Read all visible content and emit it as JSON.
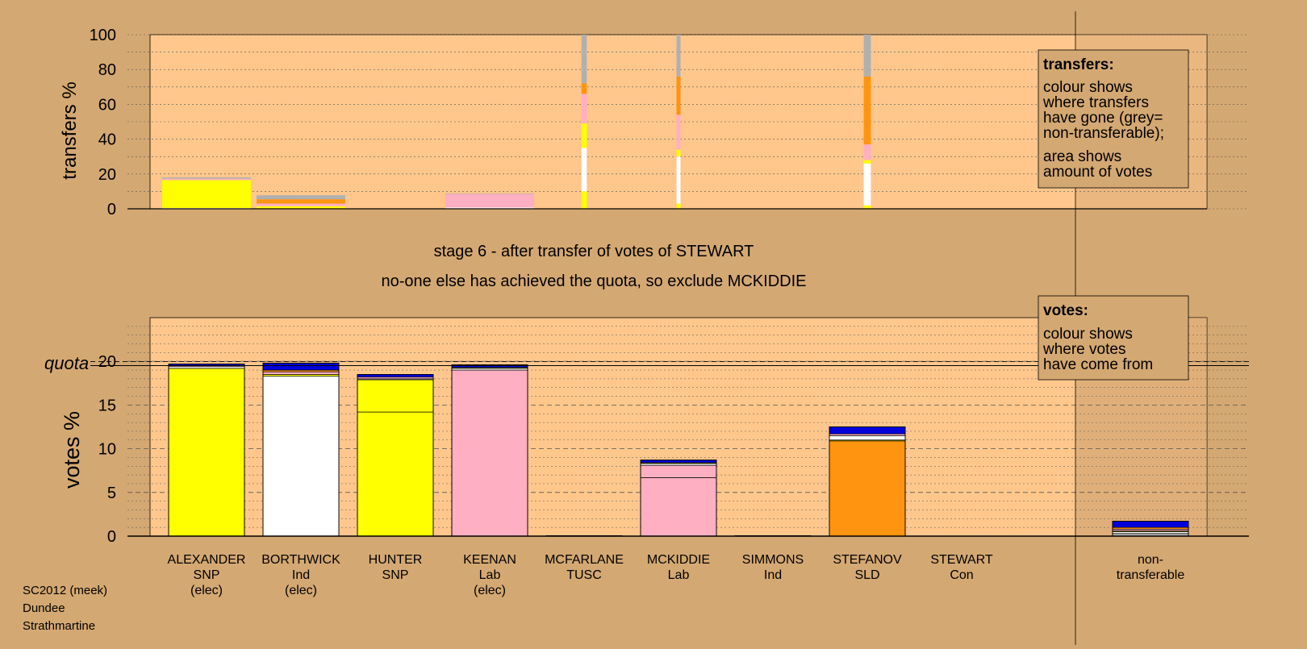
{
  "colors": {
    "page_bg": "#d4a872",
    "plot_bg": "#ffc78c",
    "shaded_bg": "#c79a6a",
    "SNP": "#ffff00",
    "Ind": "#ffffff",
    "Lab": "#ffafc2",
    "SLD": "#ff9410",
    "Con": "#0000dd",
    "TUSC": "#cc0000",
    "non_transferable": "#b0b0b0",
    "outline": "#000000"
  },
  "stage_title": "stage 6 - after transfer of votes of STEWART",
  "stage_note": "no-one else has achieved the quota, so exclude MCKIDDIE",
  "footer": [
    "SC2012 (meek)",
    "Dundee",
    "Strathmartine"
  ],
  "legend_transfers": {
    "title": "transfers:",
    "lines": [
      "colour shows",
      "where transfers",
      "have gone (grey=",
      "non-transferable);",
      "area shows",
      "amount of votes"
    ]
  },
  "legend_votes": {
    "title": "votes:",
    "lines": [
      "colour shows",
      "where votes",
      "have come from"
    ]
  },
  "chart_data": [
    {
      "type": "bar",
      "title": "",
      "ylabel": "transfers %",
      "ylim": [
        0,
        100
      ],
      "yticks": [
        0,
        20,
        40,
        60,
        80,
        100
      ],
      "categories": [
        "ALEXANDER",
        "BORTHWICK",
        "HUNTER",
        "KEENAN",
        "MCFARLANE",
        "MCKIDDIE",
        "SIMMONS",
        "STEFANOV",
        "STEWART"
      ],
      "bar_width_fraction": [
        1.0,
        1.0,
        0,
        1.0,
        0.06,
        0.04,
        0,
        0.08,
        0
      ],
      "stacks": [
        [
          {
            "party": "Ind",
            "value": 0.5
          },
          {
            "party": "SNP",
            "value": 16
          },
          {
            "party": "Lab",
            "value": 0.8
          },
          {
            "party": "non_transferable",
            "value": 0.7
          }
        ],
        [
          {
            "party": "SNP",
            "value": 1.5
          },
          {
            "party": "Lab",
            "value": 1.5
          },
          {
            "party": "SLD",
            "value": 2.5
          },
          {
            "party": "non_transferable",
            "value": 2.3
          }
        ],
        [],
        [
          {
            "party": "Ind",
            "value": 0.8
          },
          {
            "party": "Lab",
            "value": 7.7
          },
          {
            "party": "non_transferable",
            "value": 0.3
          }
        ],
        [
          {
            "party": "SNP",
            "value": 10
          },
          {
            "party": "Ind",
            "value": 25
          },
          {
            "party": "SNP",
            "value": 14
          },
          {
            "party": "Lab",
            "value": 17
          },
          {
            "party": "SLD",
            "value": 6
          },
          {
            "party": "non_transferable",
            "value": 28
          }
        ],
        [
          {
            "party": "SNP",
            "value": 3
          },
          {
            "party": "Ind",
            "value": 27
          },
          {
            "party": "SNP",
            "value": 4
          },
          {
            "party": "Lab",
            "value": 20
          },
          {
            "party": "SLD",
            "value": 22
          },
          {
            "party": "non_transferable",
            "value": 24
          }
        ],
        [],
        [
          {
            "party": "SNP",
            "value": 2
          },
          {
            "party": "Ind",
            "value": 24
          },
          {
            "party": "SNP",
            "value": 2
          },
          {
            "party": "Lab",
            "value": 9
          },
          {
            "party": "SLD",
            "value": 39
          },
          {
            "party": "non_transferable",
            "value": 24
          }
        ],
        []
      ]
    },
    {
      "type": "bar",
      "title": "",
      "ylabel": "votes %",
      "ylim": [
        0,
        25
      ],
      "yticks": [
        0,
        5,
        10,
        15,
        20
      ],
      "quota": 19.7,
      "quota_label": "quota",
      "categories": [
        "ALEXANDER",
        "BORTHWICK",
        "HUNTER",
        "KEENAN",
        "MCFARLANE",
        "MCKIDDIE",
        "SIMMONS",
        "STEFANOV",
        "STEWART",
        "non-"
      ],
      "category_lines2": [
        "SNP",
        "Ind",
        "SNP",
        "Lab",
        "TUSC",
        "Lab",
        "Ind",
        "SLD",
        "Con",
        "transferable"
      ],
      "category_lines3": [
        "(elec)",
        "(elec)",
        "",
        "(elec)",
        "",
        "",
        "",
        "",
        "",
        ""
      ],
      "stacks": [
        [
          {
            "party": "SNP",
            "value": 19.2
          },
          {
            "party": "Ind",
            "value": 0.2
          },
          {
            "party": "Lab",
            "value": 0.1
          },
          {
            "party": "Con",
            "value": 0.2
          }
        ],
        [
          {
            "party": "Ind",
            "value": 18.3
          },
          {
            "party": "SNP",
            "value": 0.2
          },
          {
            "party": "Lab",
            "value": 0.3
          },
          {
            "party": "SLD",
            "value": 0.2
          },
          {
            "party": "Con",
            "value": 0.8
          }
        ],
        [
          {
            "party": "SNP",
            "value": 14.2
          },
          {
            "party": "SNP",
            "value": 3.7
          },
          {
            "party": "Ind",
            "value": 0.1
          },
          {
            "party": "Lab",
            "value": 0.2
          },
          {
            "party": "Con",
            "value": 0.3
          }
        ],
        [
          {
            "party": "Lab",
            "value": 19.0
          },
          {
            "party": "Ind",
            "value": 0.2
          },
          {
            "party": "SNP",
            "value": 0.1
          },
          {
            "party": "Con",
            "value": 0.3
          }
        ],
        [
          {
            "party": "TUSC",
            "value": 0.05
          }
        ],
        [
          {
            "party": "Lab",
            "value": 6.7
          },
          {
            "party": "Lab",
            "value": 1.4
          },
          {
            "party": "Ind",
            "value": 0.2
          },
          {
            "party": "SNP",
            "value": 0.1
          },
          {
            "party": "Con",
            "value": 0.3
          }
        ],
        [
          {
            "party": "Ind",
            "value": 0.05
          }
        ],
        [
          {
            "party": "SLD",
            "value": 10.9
          },
          {
            "party": "SNP",
            "value": 0.1
          },
          {
            "party": "Ind",
            "value": 0.5
          },
          {
            "party": "Lab",
            "value": 0.2
          },
          {
            "party": "Con",
            "value": 0.8
          }
        ],
        [],
        [
          {
            "party": "non_transferable",
            "value": 0.3
          },
          {
            "party": "Ind",
            "value": 0.2
          },
          {
            "party": "SNP",
            "value": 0.1
          },
          {
            "party": "Lab",
            "value": 0.2
          },
          {
            "party": "SLD",
            "value": 0.2
          },
          {
            "party": "Con",
            "value": 0.7
          }
        ]
      ]
    }
  ]
}
